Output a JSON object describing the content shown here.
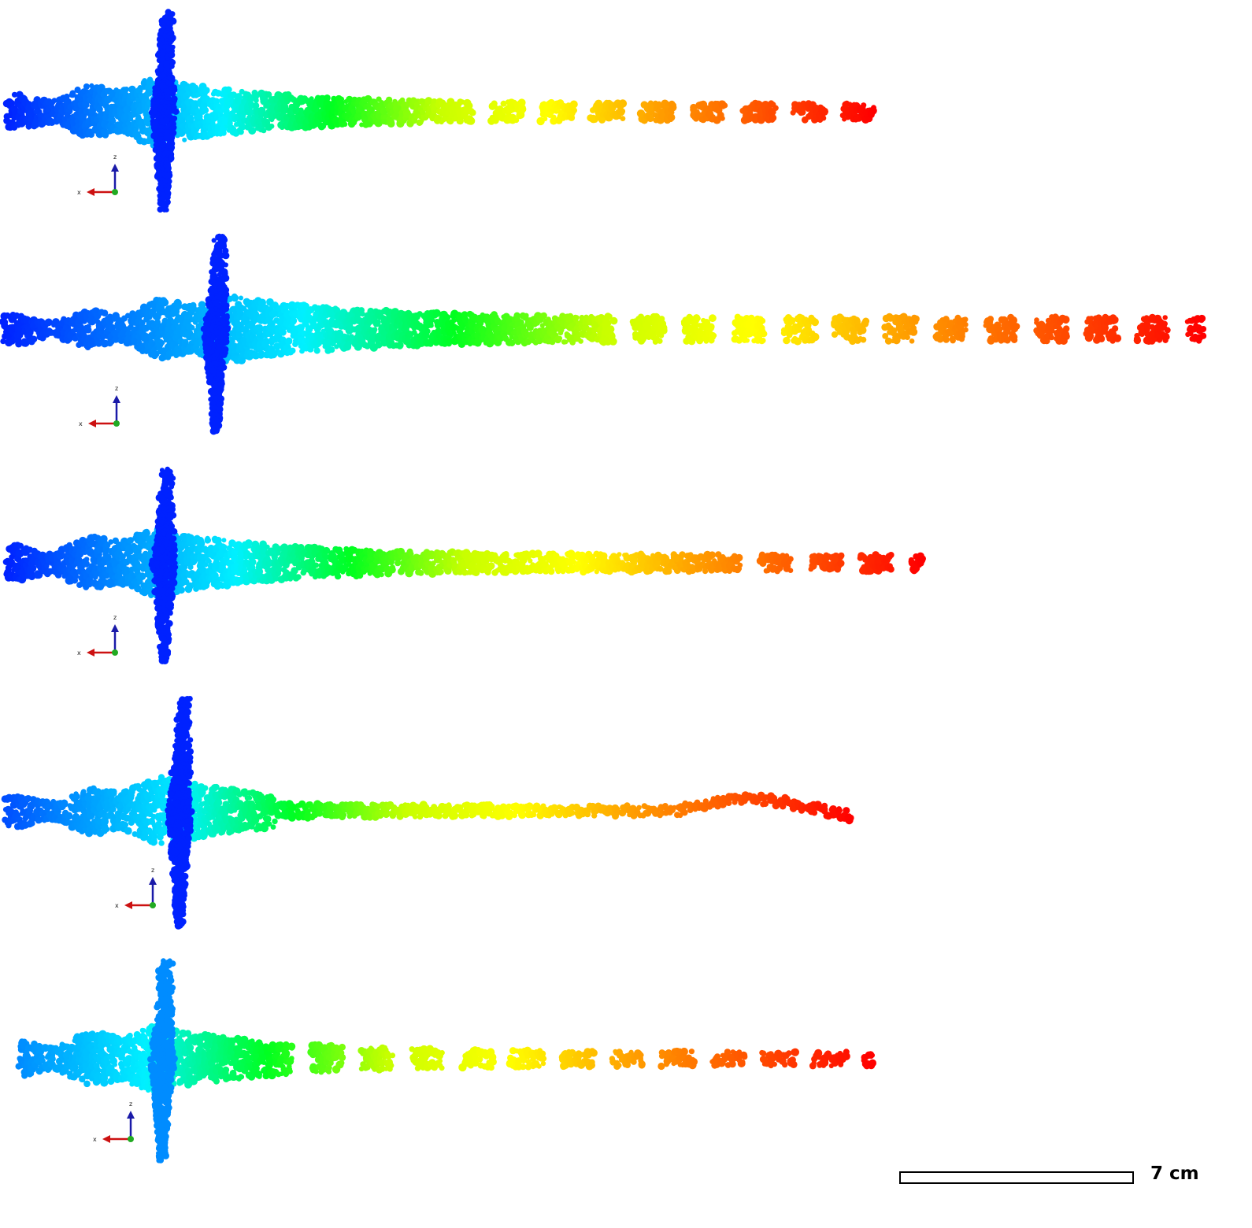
{
  "colormap": {
    "name": "jet",
    "stops": [
      "#0022ff",
      "#0090ff",
      "#00f0ff",
      "#00ff20",
      "#c8ff00",
      "#ffff00",
      "#ffa000",
      "#ff5000",
      "#ff0000"
    ]
  },
  "axis_triad": {
    "x_label": "x",
    "z_label": "z",
    "x_color": "#cc1111",
    "z_color": "#1a1aa8",
    "y_color": "#22aa22"
  },
  "panels": [
    {
      "id": "panel-1",
      "name": "point-cloud-panel-1"
    },
    {
      "id": "panel-2",
      "name": "point-cloud-panel-2"
    },
    {
      "id": "panel-3",
      "name": "point-cloud-panel-3"
    },
    {
      "id": "panel-4",
      "name": "point-cloud-panel-4"
    },
    {
      "id": "panel-5",
      "name": "point-cloud-panel-5"
    }
  ],
  "scale_bar": {
    "label": "7 cm"
  }
}
